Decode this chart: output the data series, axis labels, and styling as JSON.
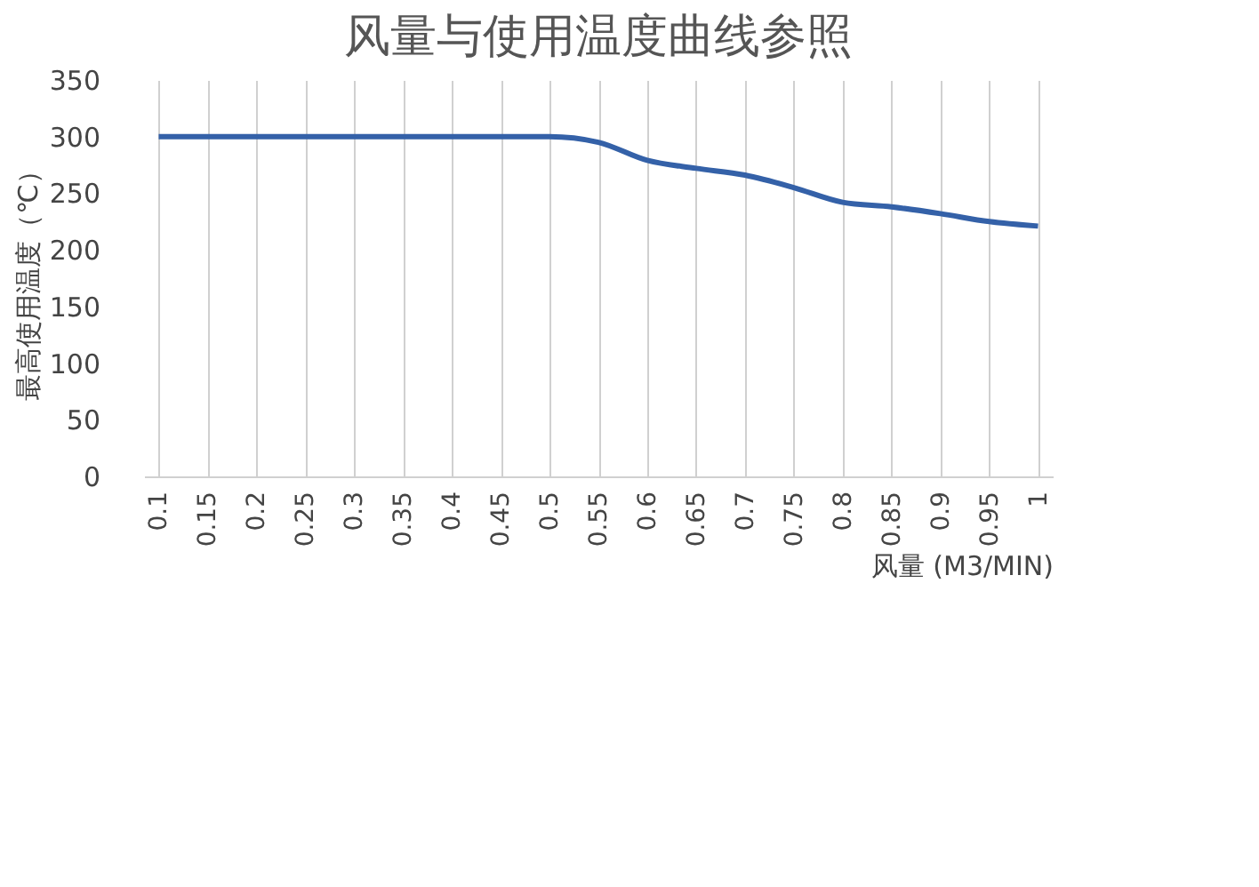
{
  "chart_data": {
    "type": "line",
    "title": "风量与使用温度曲线参照",
    "xlabel": "风量 (M3/MIN)",
    "ylabel": "最高使用温度（℃）",
    "categories": [
      "0.1",
      "0.15",
      "0.2",
      "0.25",
      "0.3",
      "0.35",
      "0.4",
      "0.45",
      "0.5",
      "0.55",
      "0.6",
      "0.65",
      "0.7",
      "0.75",
      "0.8",
      "0.85",
      "0.9",
      "0.95",
      "1"
    ],
    "series": [
      {
        "color": "#3461a8",
        "values": [
          300,
          300,
          300,
          300,
          300,
          300,
          300,
          300,
          300,
          295,
          279,
          272,
          266,
          255,
          242,
          238,
          232,
          225,
          221
        ]
      }
    ],
    "ylim": [
      0,
      350
    ],
    "yticks": [
      0,
      50,
      100,
      150,
      200,
      250,
      300,
      350
    ],
    "grid": "x",
    "legend": false,
    "marker": "none",
    "line_style": "solid"
  }
}
